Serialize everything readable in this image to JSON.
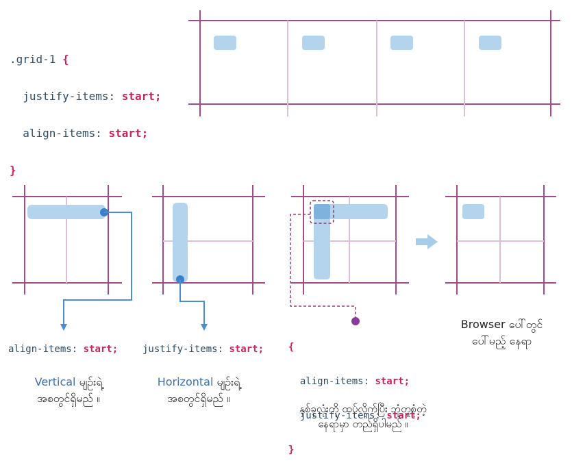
{
  "top_code": {
    "selector": ".grid-1",
    "open_brace": "{",
    "line1_prop": "justify-items:",
    "line1_val": "start;",
    "line2_prop": "align-items:",
    "line2_val": "start;",
    "close_brace": "}"
  },
  "panel1": {
    "prop": "align-items:",
    "val": "start;",
    "caption_word": "Vertical",
    "caption_rest": " မျဉ်းရဲ့",
    "caption_line2": "အစတွင်ရှိမည် ။"
  },
  "panel2": {
    "prop": "justify-items:",
    "val": "start;",
    "caption_word": "Horizontal",
    "caption_rest": " မျဉ်းရဲ့",
    "caption_line2": "အစတွင်ရှိမည် ။"
  },
  "panel3": {
    "open_brace": "{",
    "line1_prop": "align-items:",
    "line1_val": "start;",
    "line2_prop": "justify-items:",
    "line2_val": "start;",
    "close_brace": "}",
    "caption_line1": "နှစ်ခုလုံးကို ထပ်လိုက်ပြီး ဘုံတူစုံတဲ့",
    "caption_line2": "နေရာမှာ တည်ရှိပါမည် ။"
  },
  "panel4": {
    "caption_line1": "Browser ပေါ်တွင်",
    "caption_line2": "ပေါ်မည့် နေရာ"
  },
  "colors": {
    "grid_line": "#a4498e",
    "grid_faint": "#dcc0d8",
    "item_fill": "#b3d4ec",
    "arrow": "#4a8ed0",
    "dot": "#3a7fcc",
    "purple_dot": "#8a3a9a"
  }
}
